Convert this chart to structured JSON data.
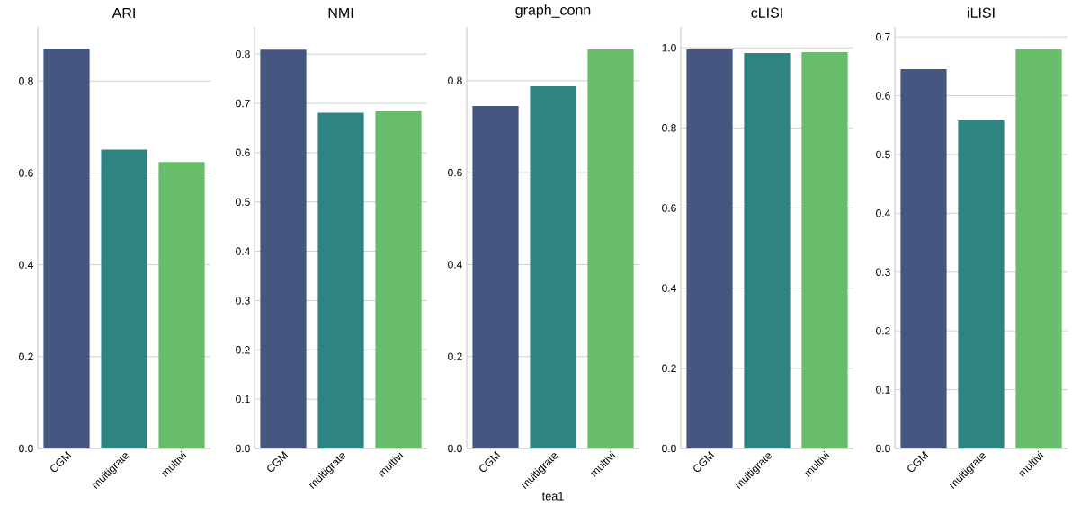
{
  "chart_data": [
    {
      "type": "bar",
      "title": "ARI",
      "categories": [
        "CGM",
        "multigrate",
        "multivi"
      ],
      "values": [
        0.871,
        0.651,
        0.624
      ],
      "colors": [
        "#455681",
        "#2e8480",
        "#68bd6b"
      ],
      "ylim": [
        0,
        0.918
      ],
      "yticks": [
        {
          "value": 0,
          "label": "0.0"
        },
        {
          "value": 0.2,
          "label": "0.2"
        },
        {
          "value": 0.4,
          "label": "0.4"
        },
        {
          "value": 0.6,
          "label": "0.6"
        },
        {
          "value": 0.8,
          "label": "0.8"
        }
      ],
      "grid": "y"
    },
    {
      "type": "bar",
      "title": "NMI",
      "categories": [
        "CGM",
        "multigrate",
        "multivi"
      ],
      "values": [
        0.809,
        0.681,
        0.685
      ],
      "colors": [
        "#455681",
        "#2e8480",
        "#68bd6b"
      ],
      "ylim": [
        0,
        0.855
      ],
      "yticks": [
        {
          "value": 0,
          "label": "0.0"
        },
        {
          "value": 0.1,
          "label": "0.1"
        },
        {
          "value": 0.2,
          "label": "0.2"
        },
        {
          "value": 0.3,
          "label": "0.3"
        },
        {
          "value": 0.4,
          "label": "0.4"
        },
        {
          "value": 0.5,
          "label": "0.5"
        },
        {
          "value": 0.6,
          "label": "0.6"
        },
        {
          "value": 0.7,
          "label": "0.7"
        },
        {
          "value": 0.8,
          "label": "0.8"
        }
      ],
      "grid": "y"
    },
    {
      "type": "bar",
      "title": "graph_conn",
      "xlabel": "tea1",
      "categories": [
        "CGM",
        "multigrate",
        "multivi"
      ],
      "values": [
        0.745,
        0.788,
        0.868
      ],
      "colors": [
        "#455681",
        "#2e8480",
        "#68bd6b"
      ],
      "ylim": [
        0,
        0.917
      ],
      "yticks": [
        {
          "value": 0,
          "label": "0.0"
        },
        {
          "value": 0.2,
          "label": "0.2"
        },
        {
          "value": 0.4,
          "label": "0.4"
        },
        {
          "value": 0.6,
          "label": "0.6"
        },
        {
          "value": 0.8,
          "label": "0.8"
        }
      ],
      "grid": "y"
    },
    {
      "type": "bar",
      "title": "cLISI",
      "categories": [
        "CGM",
        "multigrate",
        "multivi"
      ],
      "values": [
        0.996,
        0.987,
        0.989
      ],
      "colors": [
        "#455681",
        "#2e8480",
        "#68bd6b"
      ],
      "ylim": [
        0,
        1.052
      ],
      "yticks": [
        {
          "value": 0,
          "label": "0.0"
        },
        {
          "value": 0.2,
          "label": "0.2"
        },
        {
          "value": 0.4,
          "label": "0.4"
        },
        {
          "value": 0.6,
          "label": "0.6"
        },
        {
          "value": 0.8,
          "label": "0.8"
        },
        {
          "value": 1.0,
          "label": "1.0"
        }
      ],
      "grid": "y"
    },
    {
      "type": "bar",
      "title": "iLISI",
      "categories": [
        "CGM",
        "multigrate",
        "multivi"
      ],
      "values": [
        0.645,
        0.558,
        0.679
      ],
      "colors": [
        "#455681",
        "#2e8480",
        "#68bd6b"
      ],
      "ylim": [
        0,
        0.717
      ],
      "yticks": [
        {
          "value": 0,
          "label": "0.0"
        },
        {
          "value": 0.1,
          "label": "0.1"
        },
        {
          "value": 0.2,
          "label": "0.2"
        },
        {
          "value": 0.3,
          "label": "0.3"
        },
        {
          "value": 0.4,
          "label": "0.4"
        },
        {
          "value": 0.5,
          "label": "0.5"
        },
        {
          "value": 0.6,
          "label": "0.6"
        },
        {
          "value": 0.7,
          "label": "0.7"
        }
      ],
      "grid": "y"
    }
  ]
}
